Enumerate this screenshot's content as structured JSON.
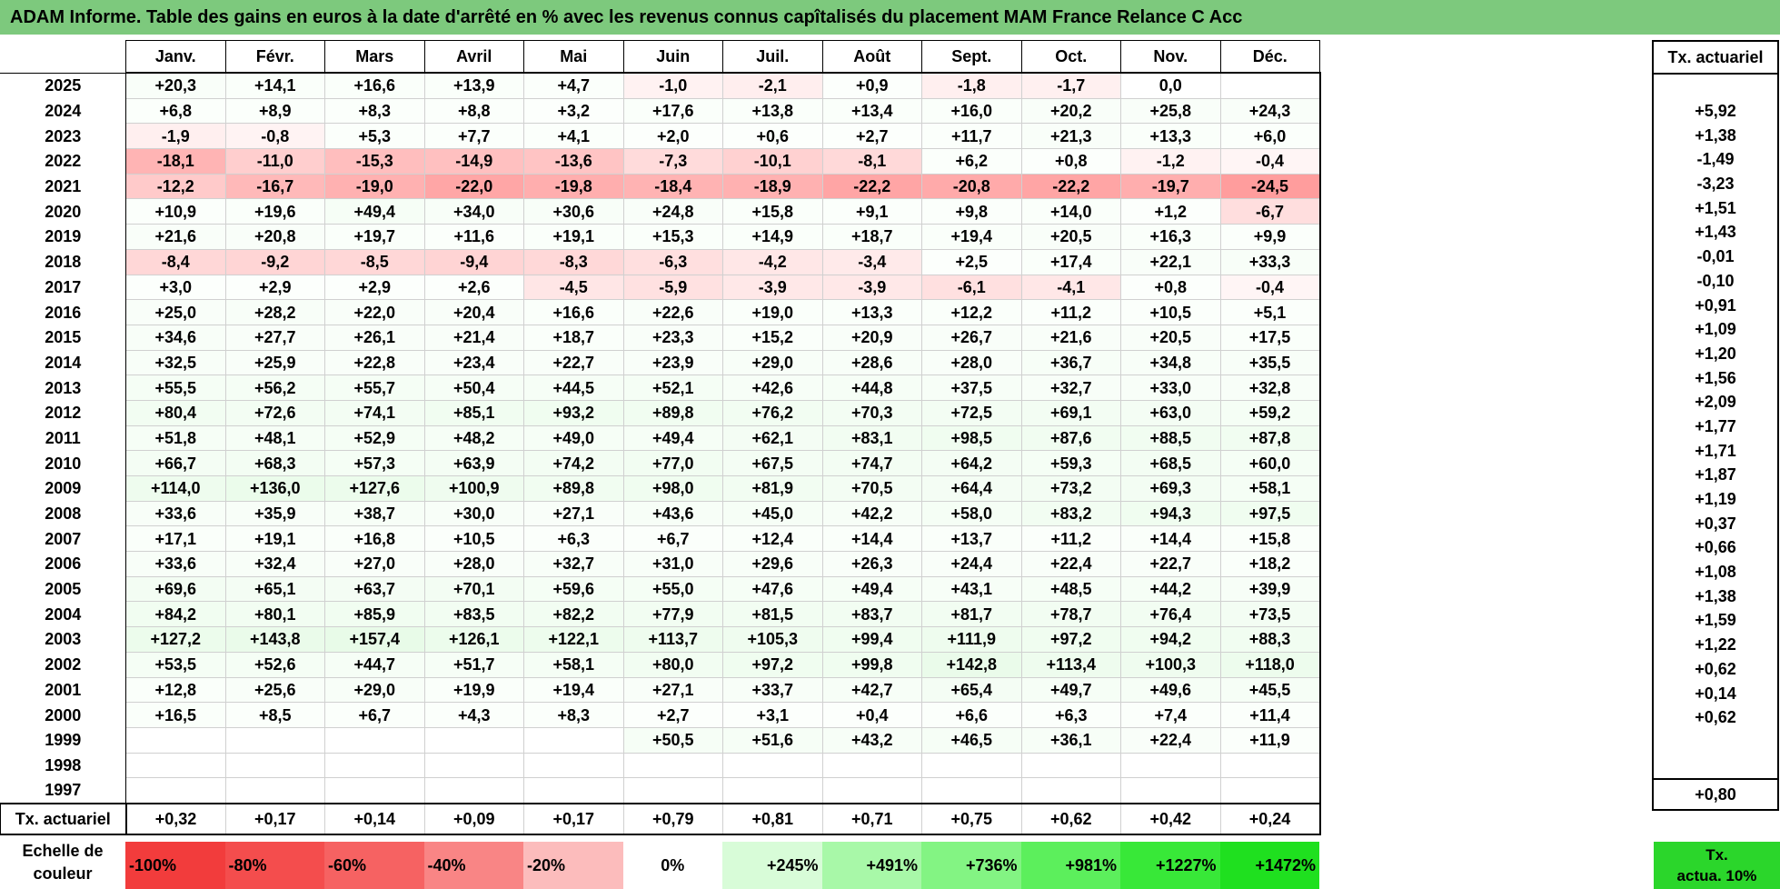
{
  "title": "ADAM Informe. Table des gains en euros à la date d'arrêté en % avec les revenus connus capîtalisés du placement MAM France Relance C Acc",
  "months": [
    "Janv.",
    "Févr.",
    "Mars",
    "Avril",
    "Mai",
    "Juin",
    "Juil.",
    "Août",
    "Sept.",
    "Oct.",
    "Nov.",
    "Déc."
  ],
  "actuarial_header": "Tx. actuariel",
  "rows": [
    {
      "year": "2025",
      "values": [
        "+20,3",
        "+14,1",
        "+16,6",
        "+13,9",
        "+4,7",
        "-1,0",
        "-2,1",
        "+0,9",
        "-1,8",
        "-1,7",
        "0,0",
        ""
      ],
      "actuarial": ""
    },
    {
      "year": "2024",
      "values": [
        "+6,8",
        "+8,9",
        "+8,3",
        "+8,8",
        "+3,2",
        "+17,6",
        "+13,8",
        "+13,4",
        "+16,0",
        "+20,2",
        "+25,8",
        "+24,3"
      ],
      "actuarial": "+5,92"
    },
    {
      "year": "2023",
      "values": [
        "-1,9",
        "-0,8",
        "+5,3",
        "+7,7",
        "+4,1",
        "+2,0",
        "+0,6",
        "+2,7",
        "+11,7",
        "+21,3",
        "+13,3",
        "+6,0"
      ],
      "actuarial": "+1,38"
    },
    {
      "year": "2022",
      "values": [
        "-18,1",
        "-11,0",
        "-15,3",
        "-14,9",
        "-13,6",
        "-7,3",
        "-10,1",
        "-8,1",
        "+6,2",
        "+0,8",
        "-1,2",
        "-0,4"
      ],
      "actuarial": "-1,49"
    },
    {
      "year": "2021",
      "values": [
        "-12,2",
        "-16,7",
        "-19,0",
        "-22,0",
        "-19,8",
        "-18,4",
        "-18,9",
        "-22,2",
        "-20,8",
        "-22,2",
        "-19,7",
        "-24,5"
      ],
      "actuarial": "-3,23"
    },
    {
      "year": "2020",
      "values": [
        "+10,9",
        "+19,6",
        "+49,4",
        "+34,0",
        "+30,6",
        "+24,8",
        "+15,8",
        "+9,1",
        "+9,8",
        "+14,0",
        "+1,2",
        "-6,7"
      ],
      "actuarial": "+1,51"
    },
    {
      "year": "2019",
      "values": [
        "+21,6",
        "+20,8",
        "+19,7",
        "+11,6",
        "+19,1",
        "+15,3",
        "+14,9",
        "+18,7",
        "+19,4",
        "+20,5",
        "+16,3",
        "+9,9"
      ],
      "actuarial": "+1,43"
    },
    {
      "year": "2018",
      "values": [
        "-8,4",
        "-9,2",
        "-8,5",
        "-9,4",
        "-8,3",
        "-6,3",
        "-4,2",
        "-3,4",
        "+2,5",
        "+17,4",
        "+22,1",
        "+33,3"
      ],
      "actuarial": "-0,01"
    },
    {
      "year": "2017",
      "values": [
        "+3,0",
        "+2,9",
        "+2,9",
        "+2,6",
        "-4,5",
        "-5,9",
        "-3,9",
        "-3,9",
        "-6,1",
        "-4,1",
        "+0,8",
        "-0,4"
      ],
      "actuarial": "-0,10"
    },
    {
      "year": "2016",
      "values": [
        "+25,0",
        "+28,2",
        "+22,0",
        "+20,4",
        "+16,6",
        "+22,6",
        "+19,0",
        "+13,3",
        "+12,2",
        "+11,2",
        "+10,5",
        "+5,1"
      ],
      "actuarial": "+0,91"
    },
    {
      "year": "2015",
      "values": [
        "+34,6",
        "+27,7",
        "+26,1",
        "+21,4",
        "+18,7",
        "+23,3",
        "+15,2",
        "+20,9",
        "+26,7",
        "+21,6",
        "+20,5",
        "+17,5"
      ],
      "actuarial": "+1,09"
    },
    {
      "year": "2014",
      "values": [
        "+32,5",
        "+25,9",
        "+22,8",
        "+23,4",
        "+22,7",
        "+23,9",
        "+29,0",
        "+28,6",
        "+28,0",
        "+36,7",
        "+34,8",
        "+35,5"
      ],
      "actuarial": "+1,20"
    },
    {
      "year": "2013",
      "values": [
        "+55,5",
        "+56,2",
        "+55,7",
        "+50,4",
        "+44,5",
        "+52,1",
        "+42,6",
        "+44,8",
        "+37,5",
        "+32,7",
        "+33,0",
        "+32,8"
      ],
      "actuarial": "+1,56"
    },
    {
      "year": "2012",
      "values": [
        "+80,4",
        "+72,6",
        "+74,1",
        "+85,1",
        "+93,2",
        "+89,8",
        "+76,2",
        "+70,3",
        "+72,5",
        "+69,1",
        "+63,0",
        "+59,2"
      ],
      "actuarial": "+2,09"
    },
    {
      "year": "2011",
      "values": [
        "+51,8",
        "+48,1",
        "+52,9",
        "+48,2",
        "+49,0",
        "+49,4",
        "+62,1",
        "+83,1",
        "+98,5",
        "+87,6",
        "+88,5",
        "+87,8"
      ],
      "actuarial": "+1,77"
    },
    {
      "year": "2010",
      "values": [
        "+66,7",
        "+68,3",
        "+57,3",
        "+63,9",
        "+74,2",
        "+77,0",
        "+67,5",
        "+74,7",
        "+64,2",
        "+59,3",
        "+68,5",
        "+60,0"
      ],
      "actuarial": "+1,71"
    },
    {
      "year": "2009",
      "values": [
        "+114,0",
        "+136,0",
        "+127,6",
        "+100,9",
        "+89,8",
        "+98,0",
        "+81,9",
        "+70,5",
        "+64,4",
        "+73,2",
        "+69,3",
        "+58,1"
      ],
      "actuarial": "+1,87"
    },
    {
      "year": "2008",
      "values": [
        "+33,6",
        "+35,9",
        "+38,7",
        "+30,0",
        "+27,1",
        "+43,6",
        "+45,0",
        "+42,2",
        "+58,0",
        "+83,2",
        "+94,3",
        "+97,5"
      ],
      "actuarial": "+1,19"
    },
    {
      "year": "2007",
      "values": [
        "+17,1",
        "+19,1",
        "+16,8",
        "+10,5",
        "+6,3",
        "+6,7",
        "+12,4",
        "+14,4",
        "+13,7",
        "+11,2",
        "+14,4",
        "+15,8"
      ],
      "actuarial": "+0,37"
    },
    {
      "year": "2006",
      "values": [
        "+33,6",
        "+32,4",
        "+27,0",
        "+28,0",
        "+32,7",
        "+31,0",
        "+29,6",
        "+26,3",
        "+24,4",
        "+22,4",
        "+22,7",
        "+18,2"
      ],
      "actuarial": "+0,66"
    },
    {
      "year": "2005",
      "values": [
        "+69,6",
        "+65,1",
        "+63,7",
        "+70,1",
        "+59,6",
        "+55,0",
        "+47,6",
        "+49,4",
        "+43,1",
        "+48,5",
        "+44,2",
        "+39,9"
      ],
      "actuarial": "+1,08"
    },
    {
      "year": "2004",
      "values": [
        "+84,2",
        "+80,1",
        "+85,9",
        "+83,5",
        "+82,2",
        "+77,9",
        "+81,5",
        "+83,7",
        "+81,7",
        "+78,7",
        "+76,4",
        "+73,5"
      ],
      "actuarial": "+1,38"
    },
    {
      "year": "2003",
      "values": [
        "+127,2",
        "+143,8",
        "+157,4",
        "+126,1",
        "+122,1",
        "+113,7",
        "+105,3",
        "+99,4",
        "+111,9",
        "+97,2",
        "+94,2",
        "+88,3"
      ],
      "actuarial": "+1,59"
    },
    {
      "year": "2002",
      "values": [
        "+53,5",
        "+52,6",
        "+44,7",
        "+51,7",
        "+58,1",
        "+80,0",
        "+97,2",
        "+99,8",
        "+142,8",
        "+113,4",
        "+100,3",
        "+118,0"
      ],
      "actuarial": "+1,22"
    },
    {
      "year": "2001",
      "values": [
        "+12,8",
        "+25,6",
        "+29,0",
        "+19,9",
        "+19,4",
        "+27,1",
        "+33,7",
        "+42,7",
        "+65,4",
        "+49,7",
        "+49,6",
        "+45,5"
      ],
      "actuarial": "+0,62"
    },
    {
      "year": "2000",
      "values": [
        "+16,5",
        "+8,5",
        "+6,7",
        "+4,3",
        "+8,3",
        "+2,7",
        "+3,1",
        "+0,4",
        "+6,6",
        "+6,3",
        "+7,4",
        "+11,4"
      ],
      "actuarial": "+0,14"
    },
    {
      "year": "1999",
      "values": [
        "",
        "",
        "",
        "",
        "",
        "+50,5",
        "+51,6",
        "+43,2",
        "+46,5",
        "+36,1",
        "+22,4",
        "+11,9"
      ],
      "actuarial": "+0,62"
    },
    {
      "year": "1998",
      "values": [
        "",
        "",
        "",
        "",
        "",
        "",
        "",
        "",
        "",
        "",
        "",
        ""
      ],
      "actuarial": ""
    },
    {
      "year": "1997",
      "values": [
        "",
        "",
        "",
        "",
        "",
        "",
        "",
        "",
        "",
        "",
        "",
        ""
      ],
      "actuarial": ""
    }
  ],
  "summary": {
    "label": "Tx. actuariel",
    "values": [
      "+0,32",
      "+0,17",
      "+0,14",
      "+0,09",
      "+0,17",
      "+0,79",
      "+0,81",
      "+0,71",
      "+0,75",
      "+0,62",
      "+0,42",
      "+0,24"
    ],
    "actuarial": "+0,80"
  },
  "color_scale": {
    "label_line1": "Echelle de",
    "label_line2": "couleur",
    "swatches": [
      {
        "label": "-100%",
        "color": "#f23c3c",
        "kind": "neg"
      },
      {
        "label": "-80%",
        "color": "#f44d4d",
        "kind": "neg"
      },
      {
        "label": "-60%",
        "color": "#f66262",
        "kind": "neg"
      },
      {
        "label": "-40%",
        "color": "#f98585",
        "kind": "neg"
      },
      {
        "label": "-20%",
        "color": "#fcbcbc",
        "kind": "neg"
      },
      {
        "label": "0%",
        "color": "#ffffff",
        "kind": "zero"
      },
      {
        "label": "+245%",
        "color": "#d8fcd8",
        "kind": "pos"
      },
      {
        "label": "+491%",
        "color": "#a8f8a8",
        "kind": "pos"
      },
      {
        "label": "+736%",
        "color": "#83f483",
        "kind": "pos"
      },
      {
        "label": "+981%",
        "color": "#5cef5c",
        "kind": "pos"
      },
      {
        "label": "+1227%",
        "color": "#38e838",
        "kind": "pos"
      },
      {
        "label": "+1472%",
        "color": "#1fe01f",
        "kind": "pos"
      }
    ],
    "actuarial_line1": "Tx.",
    "actuarial_line2": "actua. 10%"
  }
}
